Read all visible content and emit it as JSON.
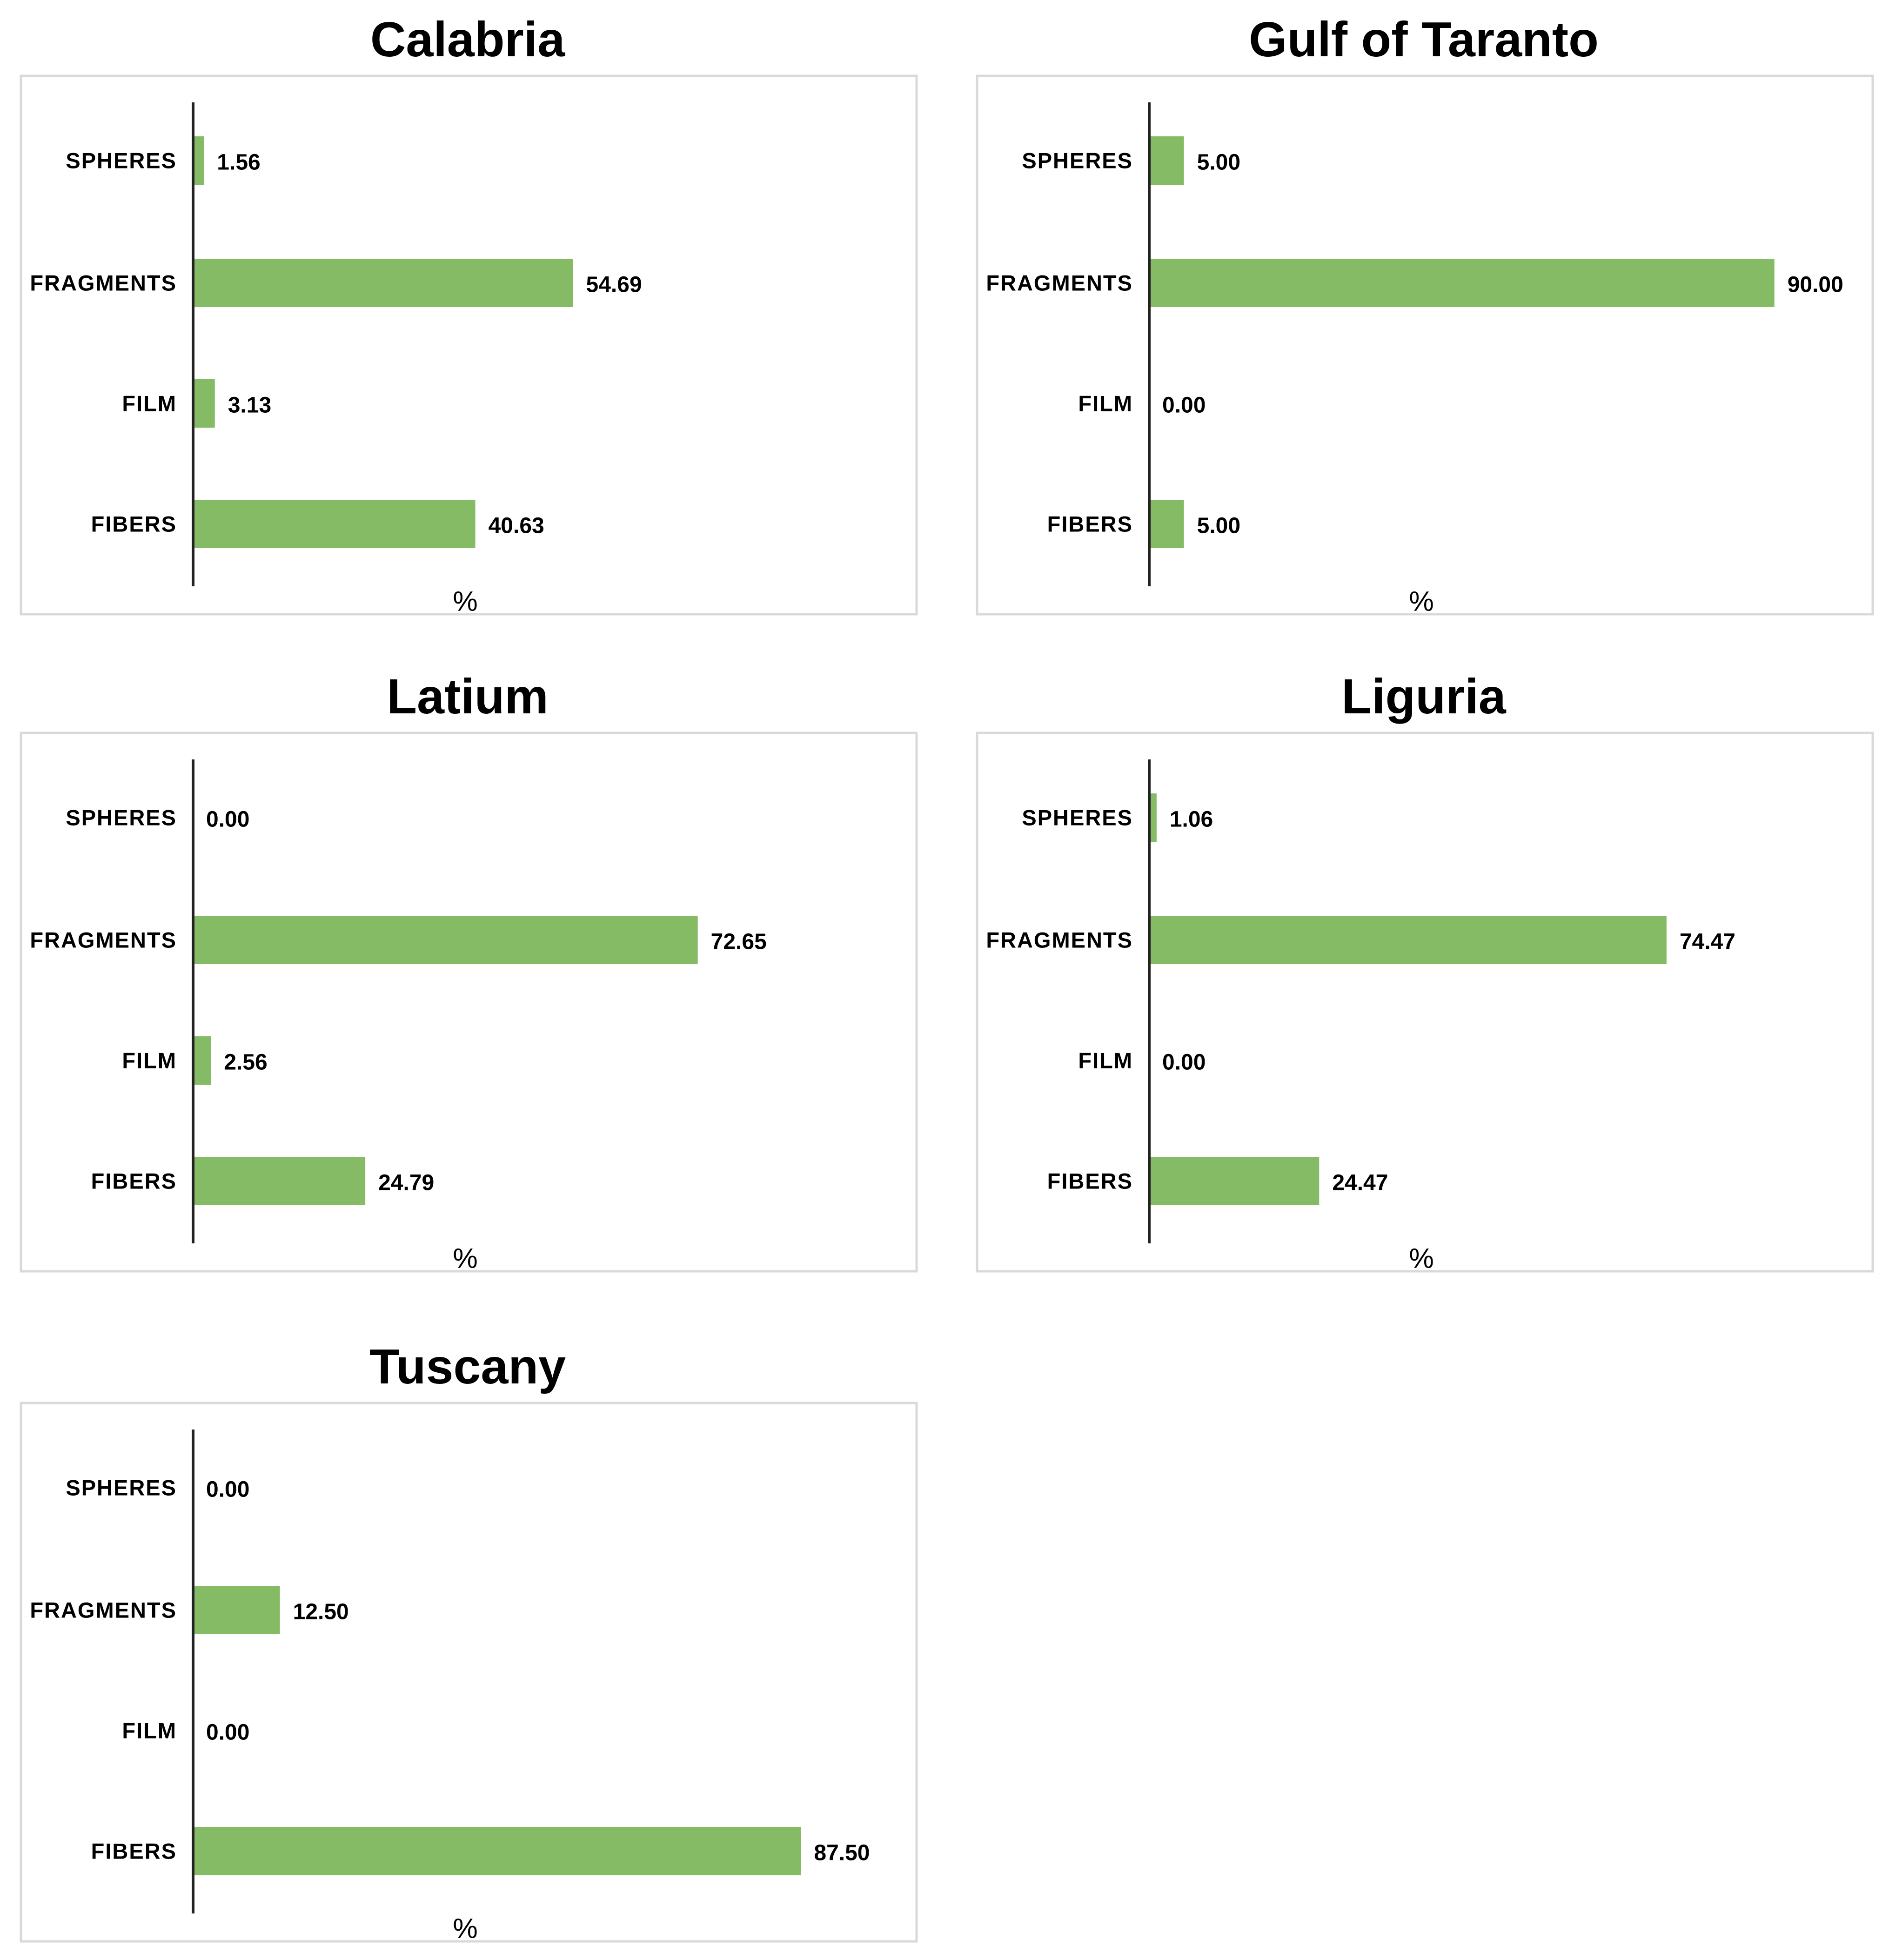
{
  "colors": {
    "bar": "#85bb65",
    "frame": "#d9d9d9",
    "axis": "#222222",
    "text": "#000000"
  },
  "chart_data": [
    {
      "type": "bar",
      "orientation": "horizontal",
      "title": "Calabria",
      "xlabel": "%",
      "ylabel": "",
      "categories": [
        "SPHERES",
        "FRAGMENTS",
        "FILM",
        "FIBERS"
      ],
      "values": [
        1.56,
        54.69,
        3.13,
        40.63
      ],
      "value_labels": [
        "1.56",
        "54.69",
        "3.13",
        "40.63"
      ],
      "xlim": [
        0,
        100
      ],
      "grid": false,
      "legend": "none"
    },
    {
      "type": "bar",
      "orientation": "horizontal",
      "title": "Gulf of Taranto",
      "xlabel": "%",
      "ylabel": "",
      "categories": [
        "SPHERES",
        "FRAGMENTS",
        "FILM",
        "FIBERS"
      ],
      "values": [
        5.0,
        90.0,
        0.0,
        5.0
      ],
      "value_labels": [
        "5.00",
        "90.00",
        "0.00",
        "5.00"
      ],
      "xlim": [
        0,
        100
      ],
      "grid": false,
      "legend": "none"
    },
    {
      "type": "bar",
      "orientation": "horizontal",
      "title": "Latium",
      "xlabel": "%",
      "ylabel": "",
      "categories": [
        "SPHERES",
        "FRAGMENTS",
        "FILM",
        "FIBERS"
      ],
      "values": [
        0.0,
        72.65,
        2.56,
        24.79
      ],
      "value_labels": [
        "0.00",
        "72.65",
        "2.56",
        "24.79"
      ],
      "xlim": [
        0,
        100
      ],
      "grid": false,
      "legend": "none"
    },
    {
      "type": "bar",
      "orientation": "horizontal",
      "title": "Liguria",
      "xlabel": "%",
      "ylabel": "",
      "categories": [
        "SPHERES",
        "FRAGMENTS",
        "FILM",
        "FIBERS"
      ],
      "values": [
        1.06,
        74.47,
        0.0,
        24.47
      ],
      "value_labels": [
        "1.06",
        "74.47",
        "0.00",
        "24.47"
      ],
      "xlim": [
        0,
        100
      ],
      "grid": false,
      "legend": "none"
    },
    {
      "type": "bar",
      "orientation": "horizontal",
      "title": "Tuscany",
      "xlabel": "%",
      "ylabel": "",
      "categories": [
        "SPHERES",
        "FRAGMENTS",
        "FILM",
        "FIBERS"
      ],
      "values": [
        0.0,
        12.5,
        0.0,
        87.5
      ],
      "value_labels": [
        "0.00",
        "12.50",
        "0.00",
        "87.50"
      ],
      "xlim": [
        0,
        100
      ],
      "grid": false,
      "legend": "none"
    }
  ]
}
